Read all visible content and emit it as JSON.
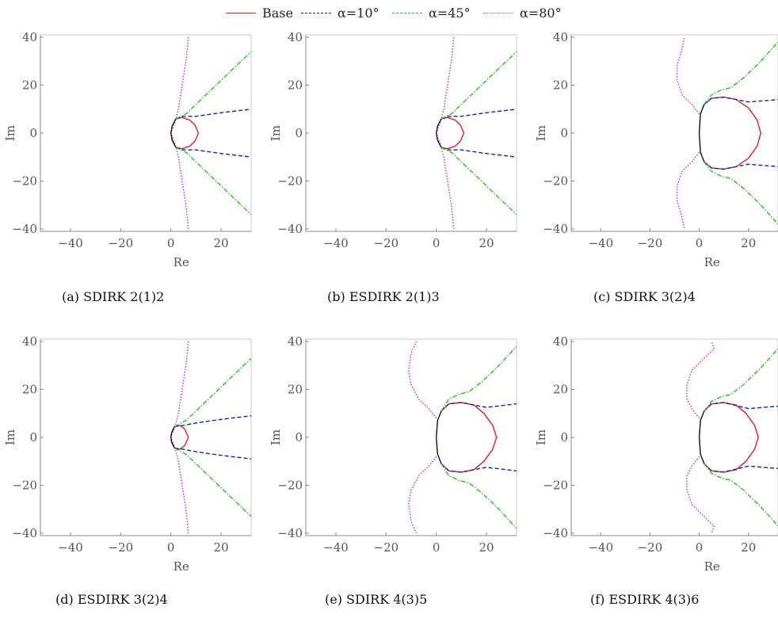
{
  "legend": {
    "entries": [
      {
        "label": "Base",
        "color": "#e02020",
        "dash": "solid"
      },
      {
        "label": "α=10°",
        "color": "#1020c0",
        "dash": "dashed"
      },
      {
        "label": "α=45°",
        "color": "#20c020",
        "dash": "dashdot"
      },
      {
        "label": "α=80°",
        "color": "#d020d0",
        "dash": "dotted"
      }
    ]
  },
  "chart_data": [
    {
      "type": "line",
      "caption": "(a) SDIRK 2(1)2",
      "xlabel": "Re",
      "ylabel": "Im",
      "xlim": [
        -52,
        32
      ],
      "ylim": [
        -41,
        41
      ],
      "xticks": [
        -40,
        -20,
        0,
        20
      ],
      "yticks": [
        -40,
        -20,
        0,
        20,
        40
      ],
      "series": [
        {
          "name": "Base",
          "x": [
            2,
            4.5,
            7.5,
            9.5,
            11,
            9.5,
            7.5,
            4.5,
            2
          ],
          "y": [
            6,
            6.5,
            5.5,
            3.5,
            0,
            -3.5,
            -5.5,
            -6.5,
            -6
          ]
        },
        {
          "name": "α=10°",
          "x": [
            2,
            5,
            10,
            20,
            32
          ],
          "y": [
            6,
            7,
            7,
            8.5,
            10
          ]
        },
        {
          "name": "α=10°",
          "x": [
            2,
            5,
            10,
            20,
            32
          ],
          "y": [
            -6,
            -7,
            -7,
            -8.5,
            -10
          ]
        },
        {
          "name": "α=45°",
          "x": [
            2,
            6,
            15,
            25,
            32
          ],
          "y": [
            6,
            8,
            17,
            27,
            34
          ]
        },
        {
          "name": "α=45°",
          "x": [
            2,
            6,
            15,
            25,
            32
          ],
          "y": [
            -6,
            -8,
            -17,
            -27,
            -34
          ]
        },
        {
          "name": "α=80°",
          "x": [
            7,
            6,
            4.5,
            3,
            1.5,
            0
          ],
          "y": [
            40,
            30,
            20,
            10,
            4,
            0
          ]
        },
        {
          "name": "α=80°",
          "x": [
            7,
            6,
            4.5,
            3,
            1.5,
            0
          ],
          "y": [
            -40,
            -30,
            -20,
            -10,
            -4,
            0
          ]
        },
        {
          "name": "Black",
          "x": [
            2,
            0.5,
            0,
            0.5,
            2
          ],
          "y": [
            6,
            3,
            0,
            -3,
            -6
          ]
        }
      ]
    },
    {
      "type": "line",
      "caption": "(b) ESDIRK 2(1)3",
      "xlabel": "Re",
      "ylabel": "Im",
      "xlim": [
        -52,
        32
      ],
      "ylim": [
        -41,
        41
      ],
      "xticks": [
        -40,
        -20,
        0,
        20
      ],
      "yticks": [
        -40,
        -20,
        0,
        20,
        40
      ],
      "series": [
        {
          "name": "Base",
          "x": [
            2,
            4.5,
            7.5,
            9.5,
            11,
            9.5,
            7.5,
            4.5,
            2
          ],
          "y": [
            6,
            6.5,
            5.5,
            3.5,
            0,
            -3.5,
            -5.5,
            -6.5,
            -6
          ]
        },
        {
          "name": "α=10°",
          "x": [
            2,
            5,
            10,
            20,
            32
          ],
          "y": [
            6,
            7,
            7,
            8.5,
            10
          ]
        },
        {
          "name": "α=10°",
          "x": [
            2,
            5,
            10,
            20,
            32
          ],
          "y": [
            -6,
            -7,
            -7,
            -8.5,
            -10
          ]
        },
        {
          "name": "α=45°",
          "x": [
            2,
            6,
            15,
            25,
            32
          ],
          "y": [
            6,
            8,
            17,
            27,
            34
          ]
        },
        {
          "name": "α=45°",
          "x": [
            2,
            6,
            15,
            25,
            32
          ],
          "y": [
            -6,
            -8,
            -17,
            -27,
            -34
          ]
        },
        {
          "name": "α=80°",
          "x": [
            7,
            6,
            4.5,
            3,
            1.5,
            0
          ],
          "y": [
            40,
            30,
            20,
            10,
            4,
            0
          ]
        },
        {
          "name": "α=80°",
          "x": [
            7,
            6,
            4.5,
            3,
            1.5,
            0
          ],
          "y": [
            -40,
            -30,
            -20,
            -10,
            -4,
            0
          ]
        },
        {
          "name": "Black",
          "x": [
            2,
            0.5,
            0,
            0.5,
            2
          ],
          "y": [
            6,
            3,
            0,
            -3,
            -6
          ]
        }
      ]
    },
    {
      "type": "line",
      "caption": "(c) SDIRK 3(2)4",
      "xlabel": "Re",
      "ylabel": "Im",
      "xlim": [
        -52,
        32
      ],
      "ylim": [
        -41,
        41
      ],
      "xticks": [
        -40,
        -20,
        0,
        20
      ],
      "yticks": [
        -40,
        -20,
        0,
        20,
        40
      ],
      "series": [
        {
          "name": "Base",
          "x": [
            2,
            5,
            10,
            15,
            20,
            23.5,
            25,
            23.5,
            20,
            15,
            10,
            5,
            2
          ],
          "y": [
            12,
            14.5,
            15,
            14,
            10.5,
            5.5,
            0,
            -5.5,
            -10.5,
            -14,
            -15,
            -14.5,
            -12
          ]
        },
        {
          "name": "α=10°",
          "x": [
            2,
            5,
            10,
            20,
            32
          ],
          "y": [
            12,
            14.5,
            15,
            13,
            14
          ]
        },
        {
          "name": "α=10°",
          "x": [
            2,
            5,
            10,
            20,
            32
          ],
          "y": [
            -12,
            -14.5,
            -15,
            -13,
            -14
          ]
        },
        {
          "name": "α=45°",
          "x": [
            2,
            5,
            9,
            13,
            18,
            25,
            32
          ],
          "y": [
            12,
            16,
            18,
            19,
            23,
            30,
            38
          ]
        },
        {
          "name": "α=45°",
          "x": [
            2,
            5,
            9,
            13,
            18,
            25,
            32
          ],
          "y": [
            -12,
            -16,
            -18,
            -19,
            -23,
            -30,
            -38
          ]
        },
        {
          "name": "α=80°",
          "x": [
            0,
            -3,
            -7,
            -9,
            -9,
            -7,
            -6
          ],
          "y": [
            8,
            12,
            16,
            22,
            28,
            35,
            40
          ]
        },
        {
          "name": "α=80°",
          "x": [
            0,
            -3,
            -7,
            -9,
            -9,
            -7,
            -6
          ],
          "y": [
            -8,
            -12,
            -16,
            -22,
            -28,
            -35,
            -40
          ]
        },
        {
          "name": "Black",
          "x": [
            2,
            0.5,
            0,
            0.5,
            2
          ],
          "y": [
            12,
            8,
            0,
            -8,
            -12
          ]
        }
      ]
    },
    {
      "type": "line",
      "caption": "(d) ESDIRK 3(2)4",
      "xlabel": "Re",
      "ylabel": "Im",
      "xlim": [
        -52,
        32
      ],
      "ylim": [
        -41,
        41
      ],
      "xticks": [
        -40,
        -20,
        0,
        20
      ],
      "yticks": [
        -40,
        -20,
        0,
        20,
        40
      ],
      "series": [
        {
          "name": "Base",
          "x": [
            1.5,
            3.5,
            5.5,
            7,
            5.5,
            3.5,
            1.5
          ],
          "y": [
            4.5,
            5,
            3.5,
            0,
            -3.5,
            -5,
            -4.5
          ]
        },
        {
          "name": "α=10°",
          "x": [
            1.5,
            5,
            10,
            20,
            32
          ],
          "y": [
            4.5,
            5,
            6,
            7.5,
            9
          ]
        },
        {
          "name": "α=10°",
          "x": [
            1.5,
            5,
            10,
            20,
            32
          ],
          "y": [
            -4.5,
            -5,
            -6,
            -7.5,
            -9
          ]
        },
        {
          "name": "α=45°",
          "x": [
            1.5,
            6,
            15,
            25,
            32
          ],
          "y": [
            4.5,
            7,
            16,
            26,
            33
          ]
        },
        {
          "name": "α=45°",
          "x": [
            1.5,
            6,
            15,
            25,
            32
          ],
          "y": [
            -4.5,
            -7,
            -16,
            -26,
            -33
          ]
        },
        {
          "name": "α=80°",
          "x": [
            7,
            6,
            4.5,
            3,
            1.5,
            0
          ],
          "y": [
            40,
            30,
            20,
            10,
            4,
            0
          ]
        },
        {
          "name": "α=80°",
          "x": [
            7,
            6,
            4.5,
            3,
            1.5,
            0
          ],
          "y": [
            -40,
            -30,
            -20,
            -10,
            -4,
            0
          ]
        },
        {
          "name": "Black",
          "x": [
            1.5,
            0.3,
            0,
            0.3,
            1.5
          ],
          "y": [
            4.5,
            2,
            0,
            -2,
            -4.5
          ]
        }
      ]
    },
    {
      "type": "line",
      "caption": "(e) SDIRK 4(3)5",
      "xlabel": "Re",
      "ylabel": "Im",
      "xlim": [
        -52,
        32
      ],
      "ylim": [
        -41,
        41
      ],
      "xticks": [
        -40,
        -20,
        0,
        20
      ],
      "yticks": [
        -40,
        -20,
        0,
        20,
        40
      ],
      "series": [
        {
          "name": "Base",
          "x": [
            2,
            5,
            10,
            15,
            19,
            22.5,
            24,
            22.5,
            19,
            15,
            10,
            5,
            2
          ],
          "y": [
            11,
            14,
            14.5,
            13.5,
            10,
            5,
            0,
            -5,
            -10,
            -13.5,
            -14.5,
            -14,
            -11
          ]
        },
        {
          "name": "α=10°",
          "x": [
            2,
            5,
            10,
            20,
            32
          ],
          "y": [
            11,
            14,
            14.5,
            12.5,
            14
          ]
        },
        {
          "name": "α=10°",
          "x": [
            2,
            5,
            10,
            20,
            32
          ],
          "y": [
            -11,
            -14,
            -14.5,
            -12.5,
            -14
          ]
        },
        {
          "name": "α=45°",
          "x": [
            2,
            5,
            9,
            13,
            18,
            25,
            32
          ],
          "y": [
            11,
            16,
            18,
            19,
            23,
            30,
            38
          ]
        },
        {
          "name": "α=45°",
          "x": [
            2,
            5,
            9,
            13,
            18,
            25,
            32
          ],
          "y": [
            -11,
            -16,
            -18,
            -19,
            -23,
            -30,
            -38
          ]
        },
        {
          "name": "α=80°",
          "x": [
            0,
            -3,
            -7,
            -10,
            -11,
            -10,
            -8
          ],
          "y": [
            8,
            12,
            16,
            22,
            28,
            35,
            40
          ]
        },
        {
          "name": "α=80°",
          "x": [
            0,
            -3,
            -7,
            -10,
            -11,
            -10,
            -8
          ],
          "y": [
            -8,
            -12,
            -16,
            -22,
            -28,
            -35,
            -40
          ]
        },
        {
          "name": "Black",
          "x": [
            2,
            0.5,
            0,
            0.5,
            2
          ],
          "y": [
            11,
            7,
            0,
            -7,
            -11
          ]
        }
      ]
    },
    {
      "type": "line",
      "caption": "(f) ESDIRK 4(3)6",
      "xlabel": "Re",
      "ylabel": "Im",
      "xlim": [
        -52,
        32
      ],
      "ylim": [
        -41,
        41
      ],
      "xticks": [
        -40,
        -20,
        0,
        20
      ],
      "yticks": [
        -40,
        -20,
        0,
        20,
        40
      ],
      "series": [
        {
          "name": "Base",
          "x": [
            2,
            5,
            10,
            15,
            19,
            22.5,
            24,
            22.5,
            19,
            15,
            10,
            5,
            2
          ],
          "y": [
            11,
            14,
            14.5,
            13.5,
            10,
            5,
            0,
            -5,
            -10,
            -13.5,
            -14.5,
            -14,
            -11
          ]
        },
        {
          "name": "α=10°",
          "x": [
            2,
            5,
            10,
            20,
            32
          ],
          "y": [
            11,
            14,
            14.5,
            12,
            13
          ]
        },
        {
          "name": "α=10°",
          "x": [
            2,
            5,
            10,
            20,
            32
          ],
          "y": [
            -11,
            -14,
            -14.5,
            -12,
            -13
          ]
        },
        {
          "name": "α=45°",
          "x": [
            2,
            5,
            9,
            13,
            18,
            25,
            32
          ],
          "y": [
            11,
            15,
            17,
            18,
            22,
            29,
            37
          ]
        },
        {
          "name": "α=45°",
          "x": [
            2,
            5,
            9,
            13,
            18,
            25,
            32
          ],
          "y": [
            -11,
            -15,
            -17,
            -18,
            -22,
            -29,
            -37
          ]
        },
        {
          "name": "α=80°",
          "x": [
            0,
            -3,
            -5,
            -5,
            -3,
            3,
            6,
            5
          ],
          "y": [
            8,
            12,
            16,
            22,
            28,
            34,
            37,
            40
          ]
        },
        {
          "name": "α=80°",
          "x": [
            0,
            -3,
            -5,
            -5,
            -3,
            3,
            6,
            5
          ],
          "y": [
            -8,
            -12,
            -16,
            -22,
            -28,
            -34,
            -37,
            -40
          ]
        },
        {
          "name": "Black",
          "x": [
            2,
            0.5,
            0,
            0.5,
            2
          ],
          "y": [
            11,
            7,
            0,
            -7,
            -11
          ]
        }
      ]
    }
  ]
}
